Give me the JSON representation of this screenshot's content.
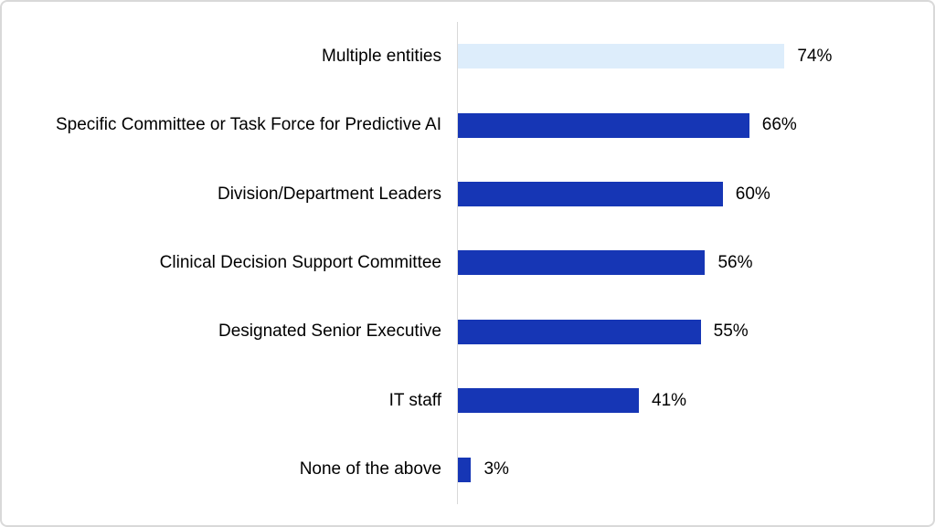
{
  "chart_data": {
    "type": "bar",
    "orientation": "horizontal",
    "title": "",
    "xlabel": "",
    "ylabel": "",
    "xlim": [
      0,
      100
    ],
    "grid": false,
    "legend": false,
    "categories": [
      "Multiple entities",
      "Specific Committee or Task Force for Predictive AI",
      "Division/Department Leaders",
      "Clinical Decision Support Committee",
      "Designated Senior Executive",
      "IT staff",
      "None of the above"
    ],
    "values": [
      74,
      66,
      60,
      56,
      55,
      41,
      3
    ],
    "value_labels": [
      "74%",
      "66%",
      "60%",
      "56%",
      "55%",
      "41%",
      "3%"
    ],
    "bar_colors": [
      "#ddedfb",
      "#1636b5",
      "#1636b5",
      "#1636b5",
      "#1636b5",
      "#1636b5",
      "#1636b5"
    ],
    "colors": {
      "highlight_bar": "#ddedfb",
      "primary_bar": "#1636b5",
      "axis_line": "#d9d9d9",
      "panel_border": "#d9d9d9",
      "text": "#000000",
      "background": "#ffffff"
    }
  }
}
